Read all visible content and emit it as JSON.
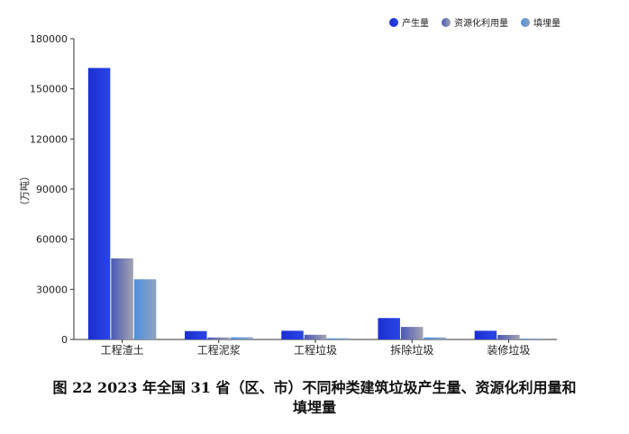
{
  "chart_data": {
    "type": "bar",
    "categories": [
      "工程渣土",
      "工程泥浆",
      "工程垃圾",
      "拆除垃圾",
      "装修垃圾"
    ],
    "series": [
      {
        "name": "产生量",
        "values": [
          162500,
          5000,
          5200,
          12800,
          5200
        ]
      },
      {
        "name": "资源化利用量",
        "values": [
          48500,
          1200,
          2800,
          7500,
          2700
        ]
      },
      {
        "name": "填埋量",
        "values": [
          36000,
          1300,
          700,
          1200,
          500
        ]
      }
    ],
    "ylabel": "（万吨）",
    "ylim": [
      0,
      180000
    ],
    "yticks": [
      "0",
      "30000",
      "60000",
      "90000",
      "120000",
      "150000",
      "180000"
    ],
    "legend_position": "top-right",
    "grid": false,
    "colors": [
      "#1f35d6",
      "#7b82a8",
      "#6a9fd8"
    ]
  },
  "caption": {
    "line1": "图 22 2023 年全国 31 省（区、市）不同种类建筑垃圾产生量、资源化利用量和",
    "line2": "填埋量"
  }
}
